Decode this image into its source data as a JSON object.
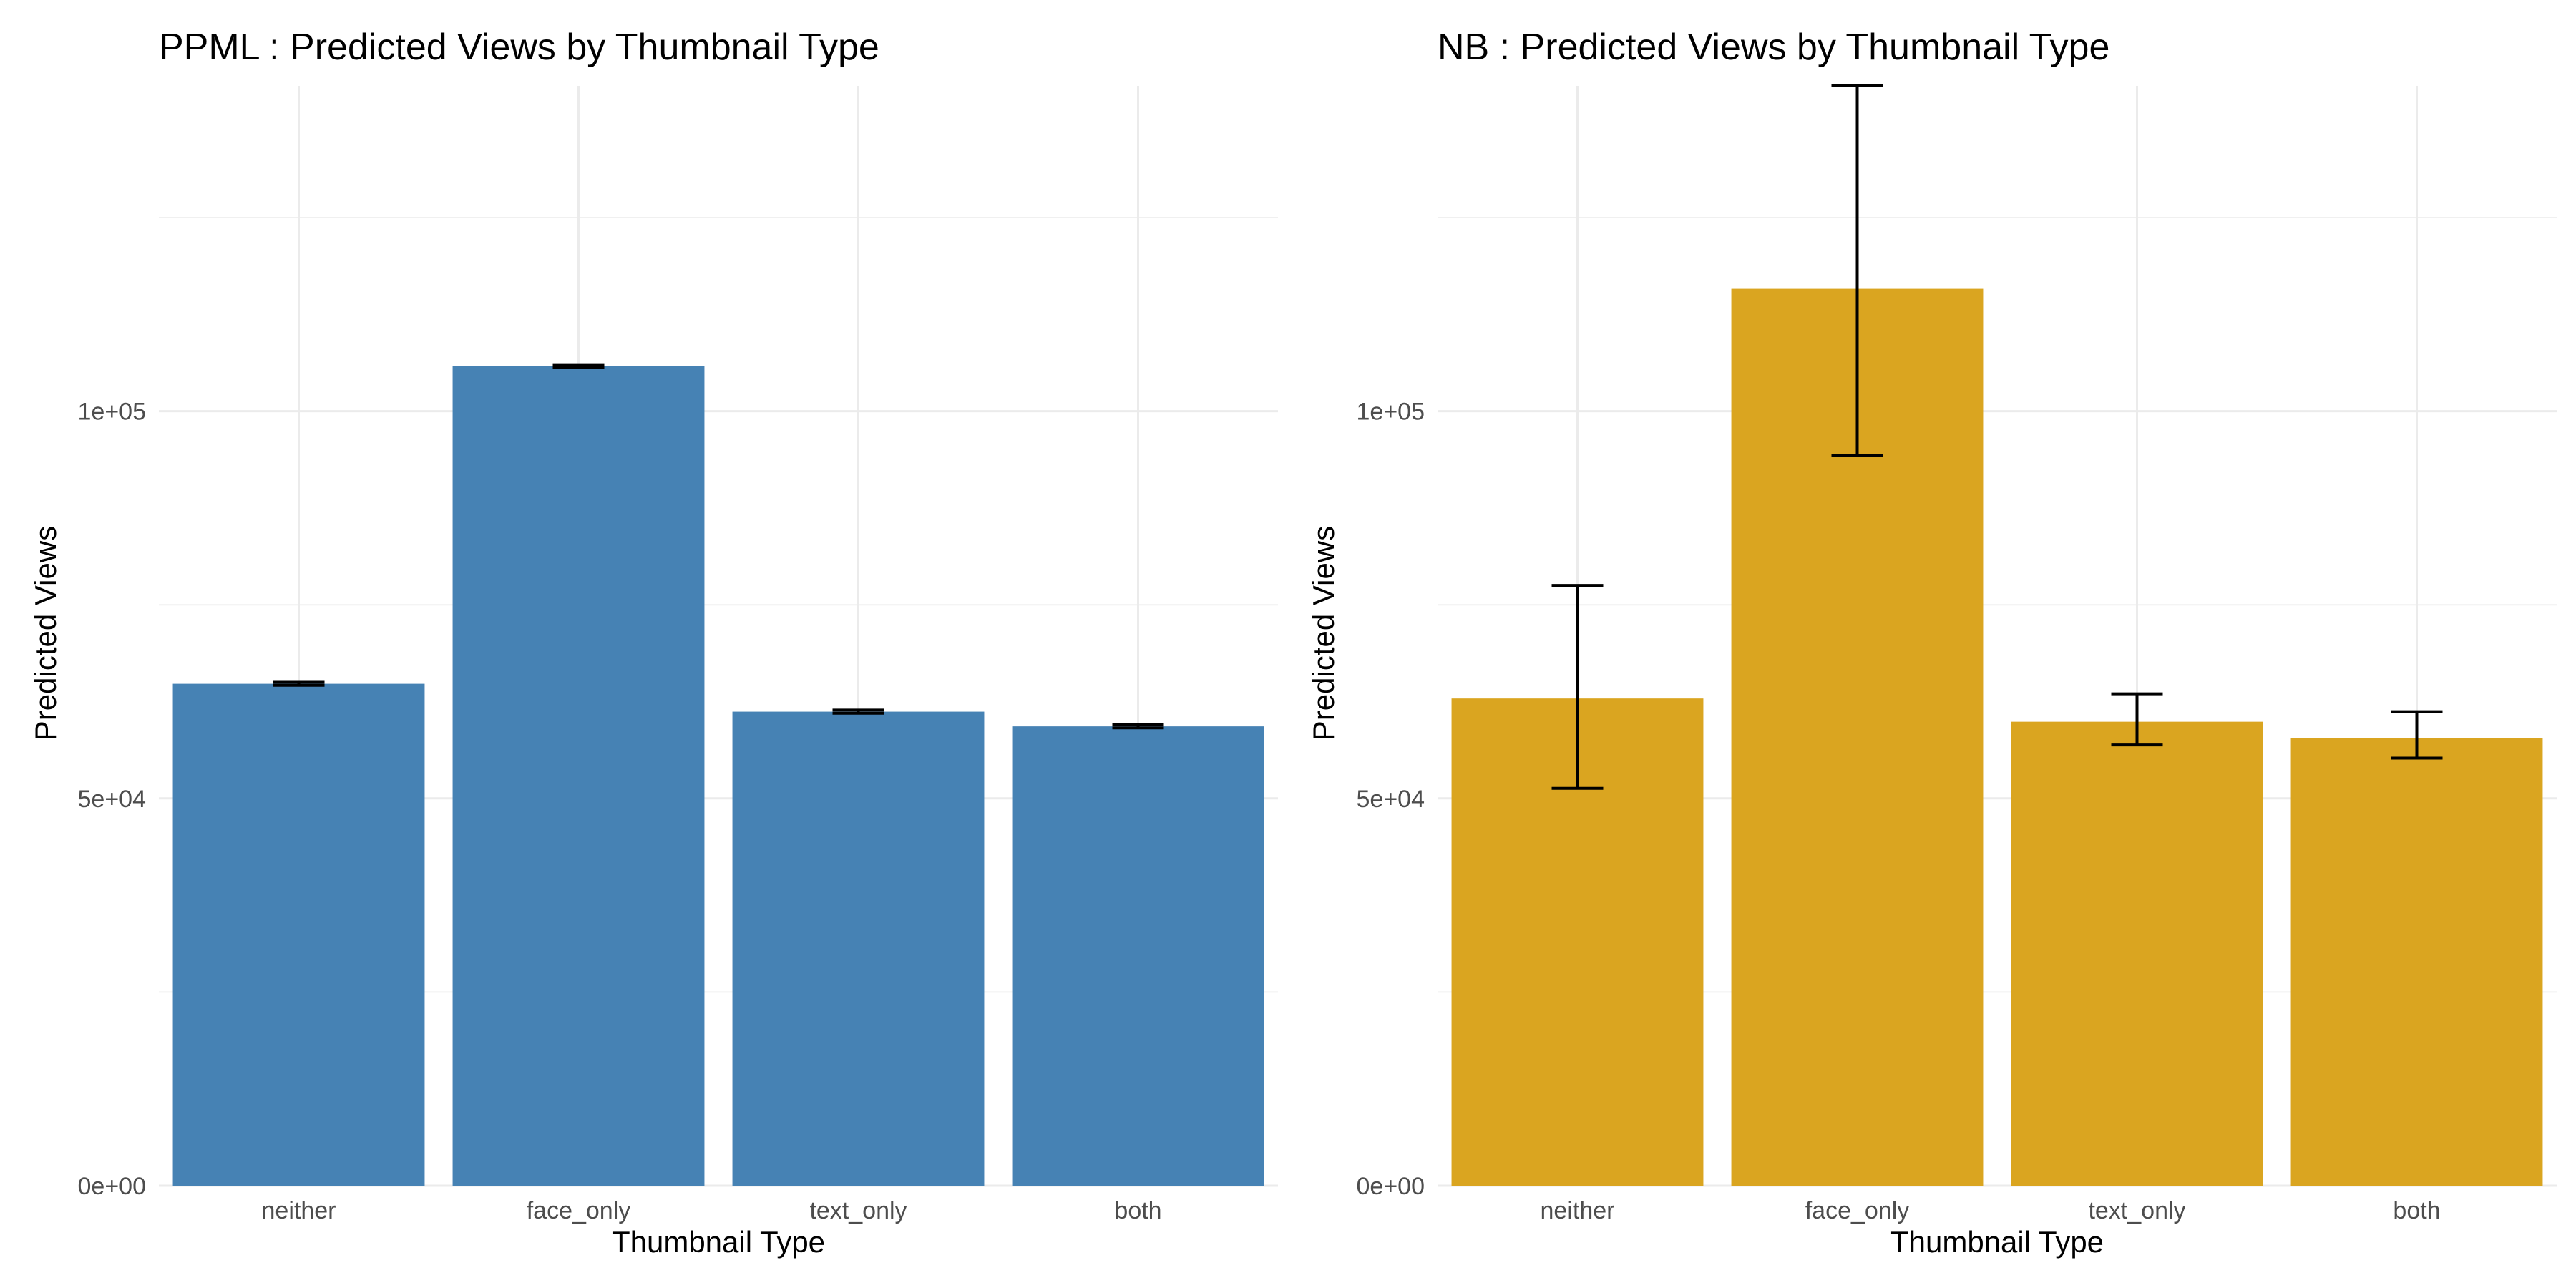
{
  "chart_data": [
    {
      "type": "bar",
      "title": "PPML : Predicted Views by Thumbnail Type",
      "xlabel": "Thumbnail Type",
      "ylabel": "Predicted Views",
      "categories": [
        "neither",
        "face_only",
        "text_only",
        "both"
      ],
      "values": [
        64800,
        105800,
        61200,
        59300
      ],
      "error_low": [
        64600,
        105600,
        61000,
        59100
      ],
      "error_high": [
        65000,
        106000,
        61400,
        59500
      ],
      "ylim": [
        0,
        142000
      ],
      "yticks": [
        0,
        50000,
        100000
      ],
      "ytick_labels": [
        "0e+00",
        "5e+04",
        "1e+05"
      ],
      "grid": true,
      "bar_color": "#4682B4"
    },
    {
      "type": "bar",
      "title": "NB : Predicted Views by Thumbnail Type",
      "xlabel": "Thumbnail Type",
      "ylabel": "Predicted Views",
      "categories": [
        "neither",
        "face_only",
        "text_only",
        "both"
      ],
      "values": [
        62900,
        115800,
        59900,
        57800
      ],
      "error_low": [
        51300,
        94300,
        56900,
        55200
      ],
      "error_high": [
        77500,
        142000,
        63500,
        61200
      ],
      "ylim": [
        0,
        142000
      ],
      "yticks": [
        0,
        50000,
        100000
      ],
      "ytick_labels": [
        "0e+00",
        "5e+04",
        "1e+05"
      ],
      "grid": true,
      "bar_color": "#DAA520"
    }
  ]
}
